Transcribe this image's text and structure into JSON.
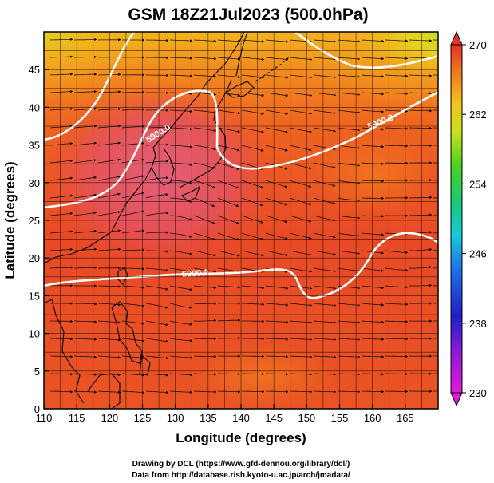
{
  "title": "GSM 18Z21Jul2023 (500.0hPa)",
  "x_axis": {
    "label": "Longitude (degrees)",
    "range": [
      110,
      170
    ],
    "ticks": [
      "110",
      "115",
      "120",
      "125",
      "130",
      "135",
      "140",
      "145",
      "150",
      "155",
      "160",
      "165"
    ]
  },
  "y_axis": {
    "label": "Latitude  (degrees)",
    "range": [
      0,
      50
    ],
    "ticks": [
      "0",
      "5",
      "10",
      "15",
      "20",
      "25",
      "30",
      "35",
      "40",
      "45"
    ]
  },
  "colorbar": {
    "range": [
      230,
      270
    ],
    "ticks": [
      "230",
      "238",
      "246",
      "254",
      "262",
      "270"
    ]
  },
  "contour_labels": [
    "5900.0",
    "5900.0",
    "5900.0"
  ],
  "credits": {
    "line1": "Drawing by DCL (https://www.gfd-dennou.org/library/dcl/)",
    "line2": "Data from http://database.rish.kyoto-u.ac.jp/arch/jmadata/"
  },
  "colors": {
    "warm": "#e8402a",
    "hot": "#e2586a",
    "mid": "#f07a1e",
    "yellow": "#f3c41c",
    "green": "#c8e028",
    "contour": "#ffffff",
    "coast": "#000000"
  }
}
